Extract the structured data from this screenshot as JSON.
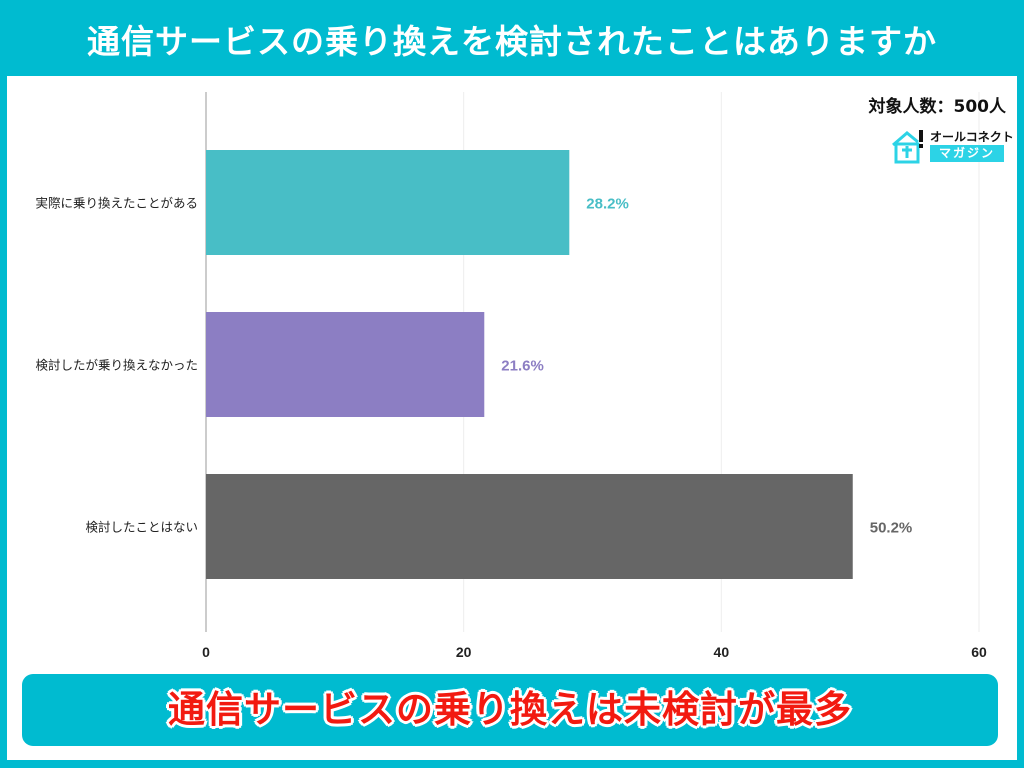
{
  "title": "通信サービスの乗り換えを検討されたことはありますか",
  "respondents": "対象人数：500人",
  "logo": {
    "line1": "オールコネクト",
    "line2": "マガジン"
  },
  "banner": "通信サービスの乗り換えは未検討が最多",
  "colors": {
    "background": "#00BBD0",
    "banner_text": "#F21A10"
  },
  "chart_data": {
    "type": "bar",
    "orientation": "horizontal",
    "categories": [
      "実際に乗り換えたことがある",
      "検討したが乗り換えなかった",
      "検討したことはない"
    ],
    "values": [
      28.2,
      21.6,
      50.2
    ],
    "value_labels": [
      "28.2%",
      "21.6%",
      "50.2%"
    ],
    "colors": [
      "#48BEC6",
      "#8C7EC3",
      "#666666"
    ],
    "xlim": [
      0,
      60
    ],
    "xticks": [
      0,
      20,
      40,
      60
    ],
    "xtick_labels": [
      "0",
      "20",
      "40",
      "60"
    ],
    "grid": true
  }
}
